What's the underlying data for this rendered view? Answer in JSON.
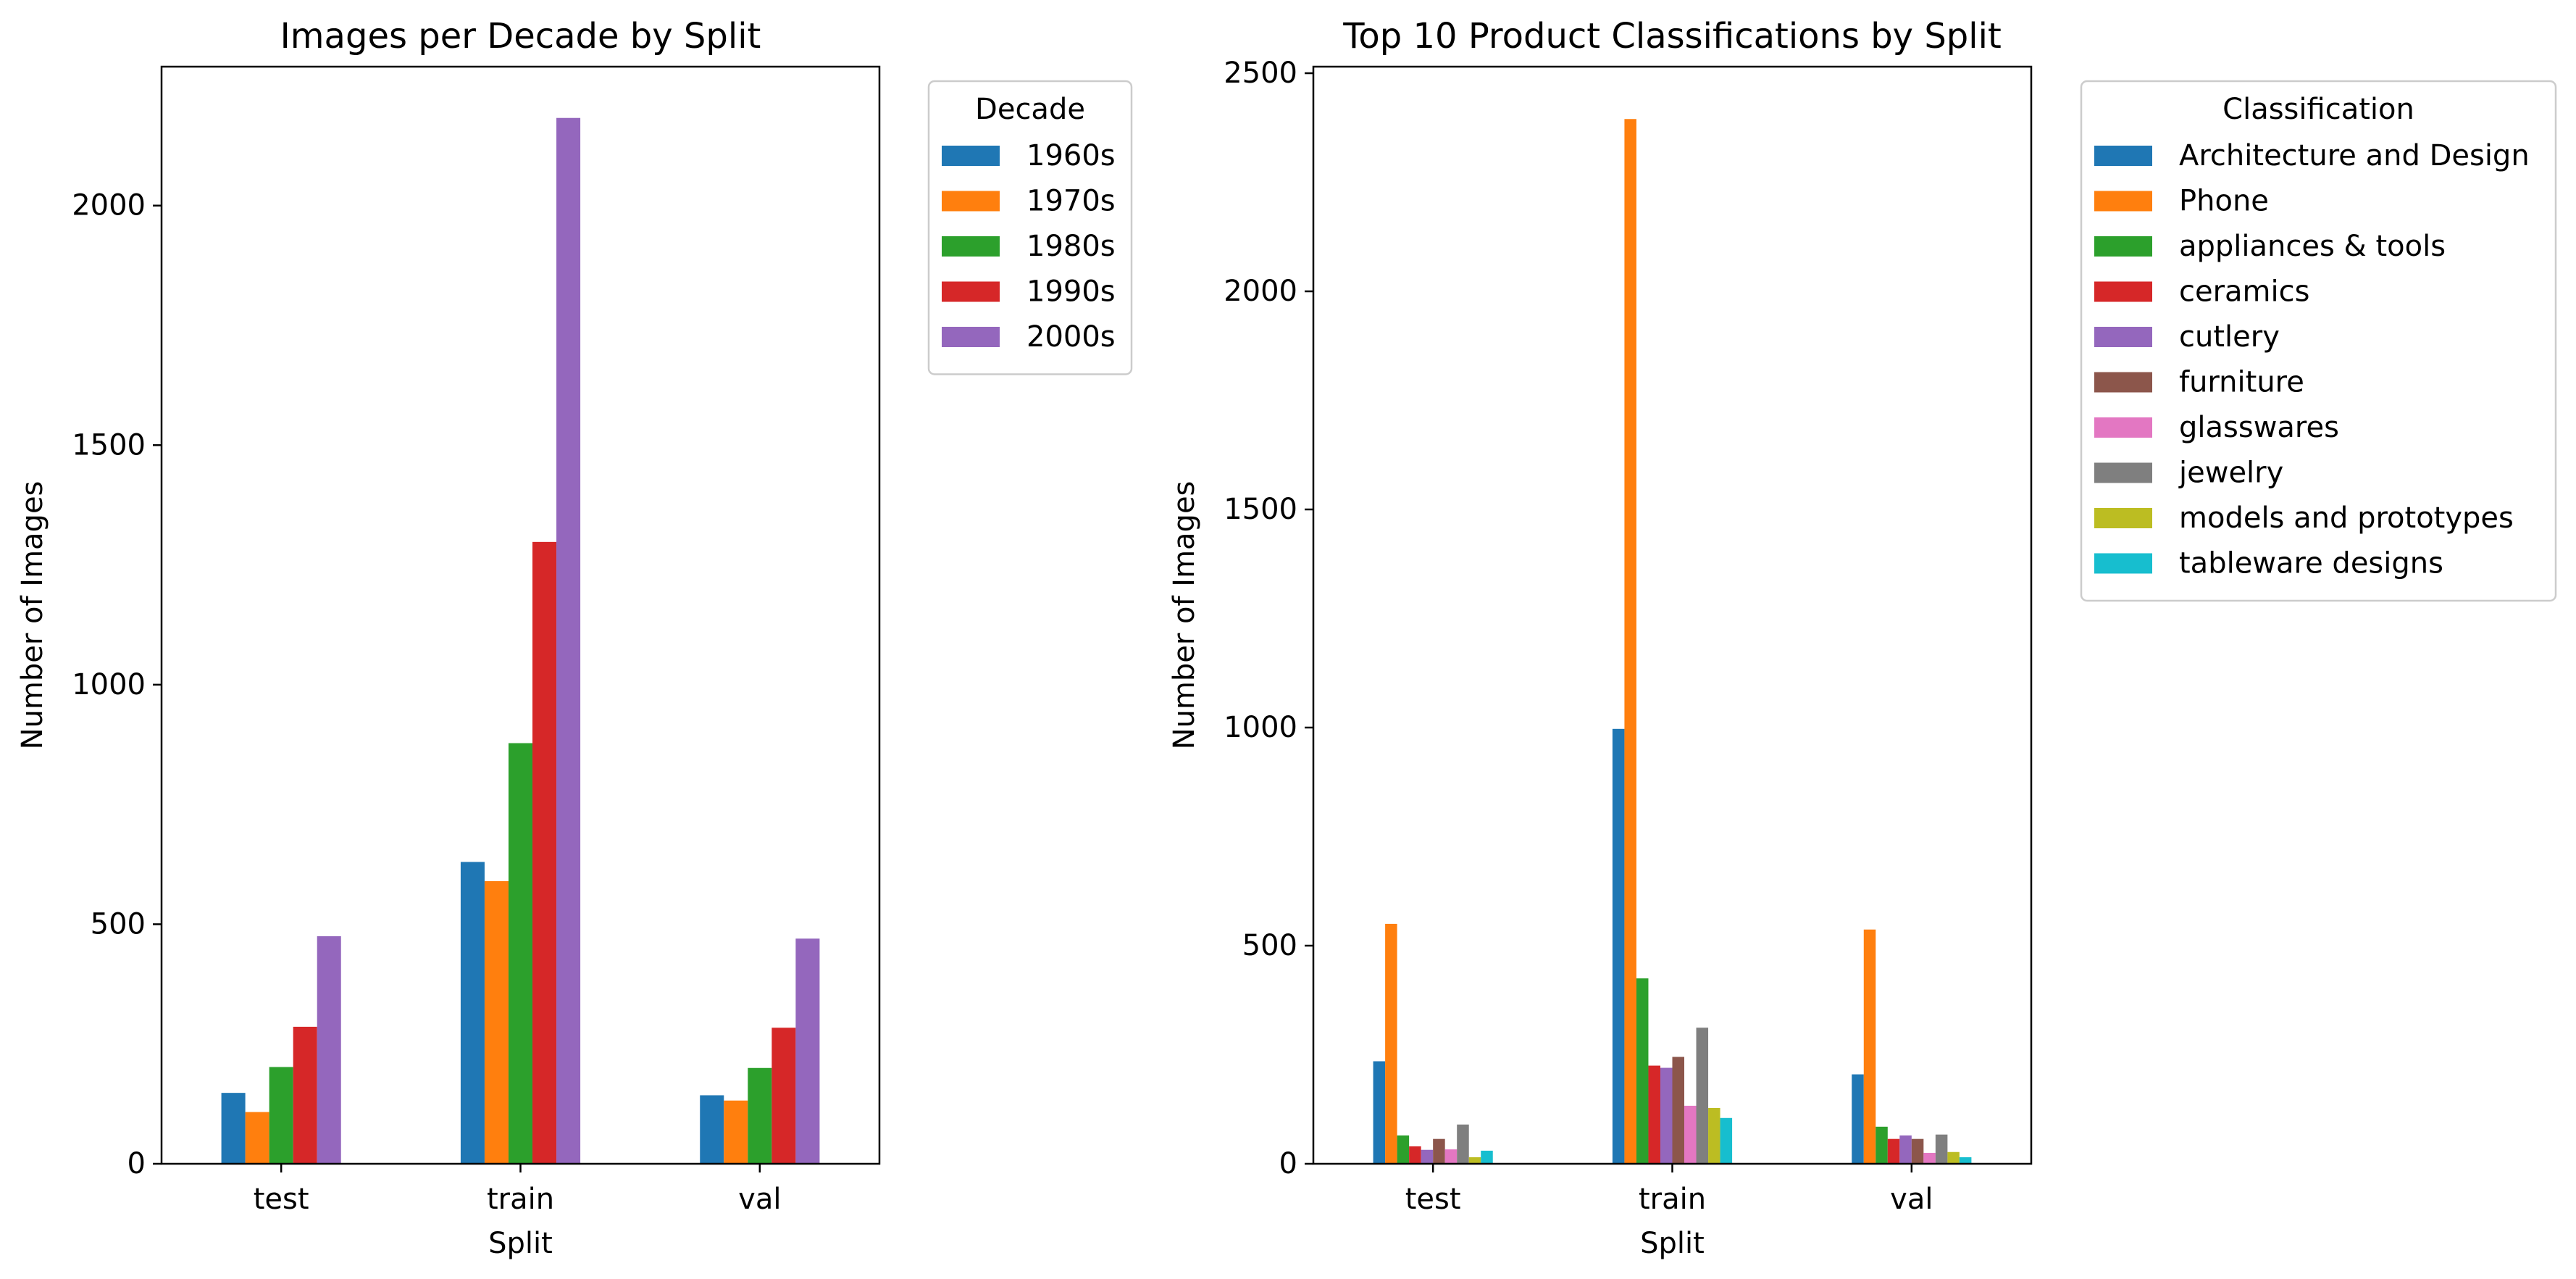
{
  "chart_data": [
    {
      "type": "bar",
      "title": "Images per Decade by Split",
      "xlabel": "Split",
      "ylabel": "Number of Images",
      "categories": [
        "test",
        "train",
        "val"
      ],
      "ylim": [
        0,
        2290
      ],
      "yticks": [
        0,
        500,
        1000,
        1500,
        2000
      ],
      "legend_title": "Decade",
      "legend_position": "outside-upper-right",
      "grid": false,
      "series": [
        {
          "name": "1960s",
          "color": "#1f77b4",
          "values": [
            148,
            630,
            143
          ]
        },
        {
          "name": "1970s",
          "color": "#ff7f0e",
          "values": [
            108,
            590,
            132
          ]
        },
        {
          "name": "1980s",
          "color": "#2ca02c",
          "values": [
            202,
            878,
            200
          ]
        },
        {
          "name": "1990s",
          "color": "#d62728",
          "values": [
            286,
            1298,
            284
          ]
        },
        {
          "name": "2000s",
          "color": "#9467bd",
          "values": [
            475,
            2183,
            470
          ]
        }
      ]
    },
    {
      "type": "bar",
      "title": "Top 10 Product Classifications by Split",
      "xlabel": "Split",
      "ylabel": "Number of Images",
      "categories": [
        "test",
        "train",
        "val"
      ],
      "ylim": [
        0,
        2515
      ],
      "yticks": [
        0,
        500,
        1000,
        1500,
        2000,
        2500
      ],
      "legend_title": "Classification",
      "legend_position": "outside-upper-right",
      "grid": false,
      "series": [
        {
          "name": "Architecture and Design",
          "color": "#1f77b4",
          "values": [
            235,
            997,
            205
          ]
        },
        {
          "name": "Phone",
          "color": "#ff7f0e",
          "values": [
            550,
            2395,
            537
          ]
        },
        {
          "name": "appliances & tools",
          "color": "#2ca02c",
          "values": [
            65,
            425,
            85
          ]
        },
        {
          "name": "ceramics",
          "color": "#d62728",
          "values": [
            40,
            225,
            57
          ]
        },
        {
          "name": "cutlery",
          "color": "#9467bd",
          "values": [
            32,
            220,
            65
          ]
        },
        {
          "name": "furniture",
          "color": "#8c564b",
          "values": [
            57,
            245,
            57
          ]
        },
        {
          "name": "glasswares",
          "color": "#e377c2",
          "values": [
            33,
            133,
            25
          ]
        },
        {
          "name": "jewelry",
          "color": "#7f7f7f",
          "values": [
            90,
            312,
            67
          ]
        },
        {
          "name": "models and prototypes",
          "color": "#bcbd22",
          "values": [
            15,
            128,
            27
          ]
        },
        {
          "name": "tableware designs",
          "color": "#17becf",
          "values": [
            30,
            105,
            15
          ]
        }
      ]
    }
  ]
}
